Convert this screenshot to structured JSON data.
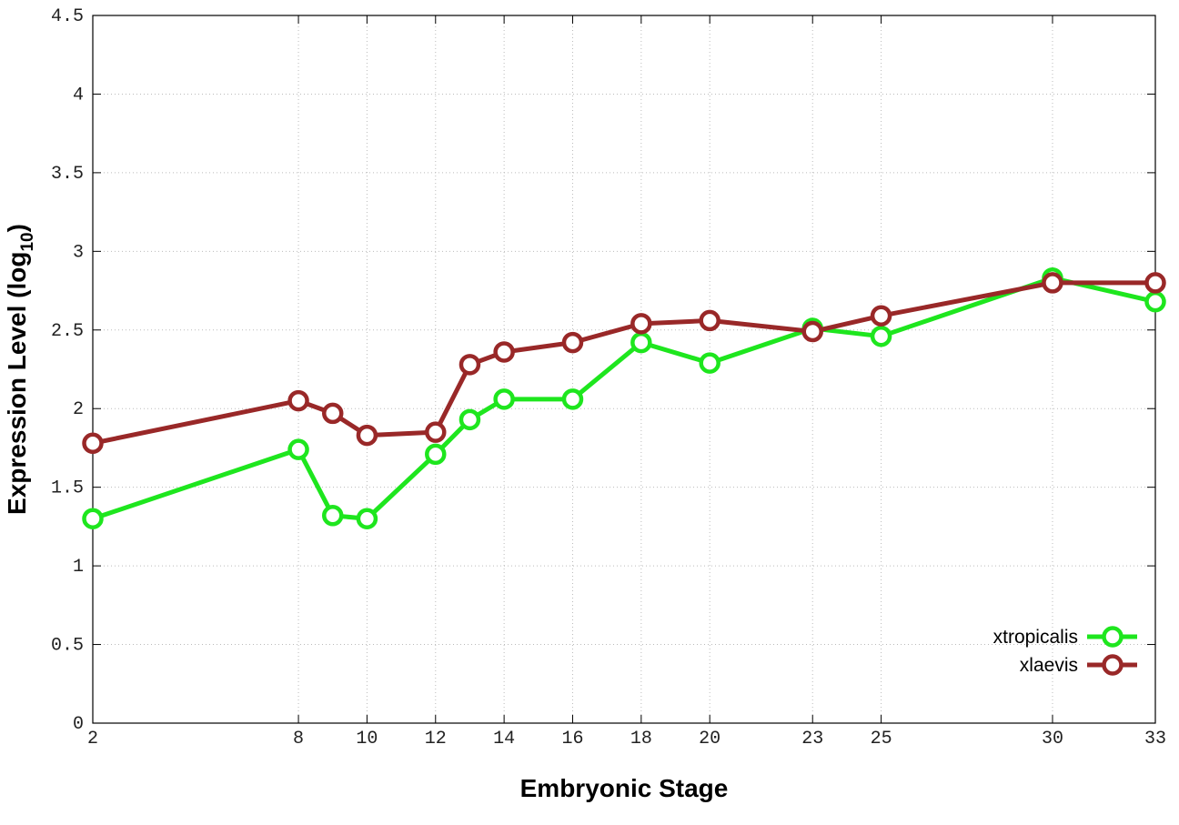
{
  "chart_data": {
    "type": "line",
    "x_label": "Embryonic Stage",
    "y_label": {
      "text": "Expression Level (log",
      "sub": "10",
      "suffix": ")"
    },
    "x": [
      2,
      8,
      9,
      10,
      12,
      13,
      14,
      16,
      18,
      20,
      23,
      25,
      30,
      33
    ],
    "series": [
      {
        "name": "xtropicalis",
        "color": "#1ee61e",
        "values": [
          1.3,
          1.74,
          1.32,
          1.3,
          1.71,
          1.93,
          2.06,
          2.06,
          2.42,
          2.29,
          2.51,
          2.46,
          2.83,
          2.68
        ]
      },
      {
        "name": "xlaevis",
        "color": "#992828",
        "values": [
          1.78,
          2.05,
          1.97,
          1.83,
          1.85,
          2.28,
          2.36,
          2.42,
          2.54,
          2.56,
          2.49,
          2.59,
          2.8,
          2.8
        ]
      }
    ],
    "xlim": [
      2,
      33
    ],
    "xticks": [
      2,
      8,
      10,
      12,
      14,
      16,
      18,
      20,
      23,
      25,
      30,
      33
    ],
    "ylim": [
      0,
      4.5
    ],
    "yticks": [
      0,
      0.5,
      1,
      1.5,
      2,
      2.5,
      3,
      3.5,
      4,
      4.5
    ],
    "grid": true,
    "legend": "lower-right"
  }
}
